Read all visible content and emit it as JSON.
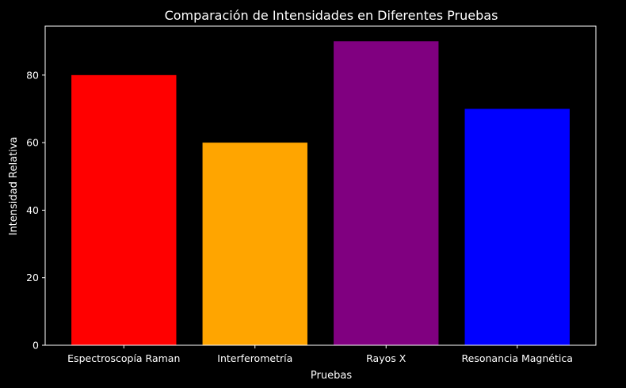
{
  "chart_data": {
    "type": "bar",
    "title": "Comparación de Intensidades en Diferentes Pruebas",
    "xlabel": "Pruebas",
    "ylabel": "Intensidad Relativa",
    "categories": [
      "Espectroscopía Raman",
      "Interferometría",
      "Rayos X",
      "Resonancia Magnética"
    ],
    "values": [
      80,
      60,
      90,
      70
    ],
    "colors": [
      "#ff0000",
      "#ffa500",
      "#800080",
      "#0000ff"
    ],
    "ylim": [
      0,
      94.5
    ],
    "yticks": [
      0,
      20,
      40,
      60,
      80
    ],
    "background": "#000000",
    "foreground": "#ffffff",
    "grid": false,
    "legend": "none"
  }
}
